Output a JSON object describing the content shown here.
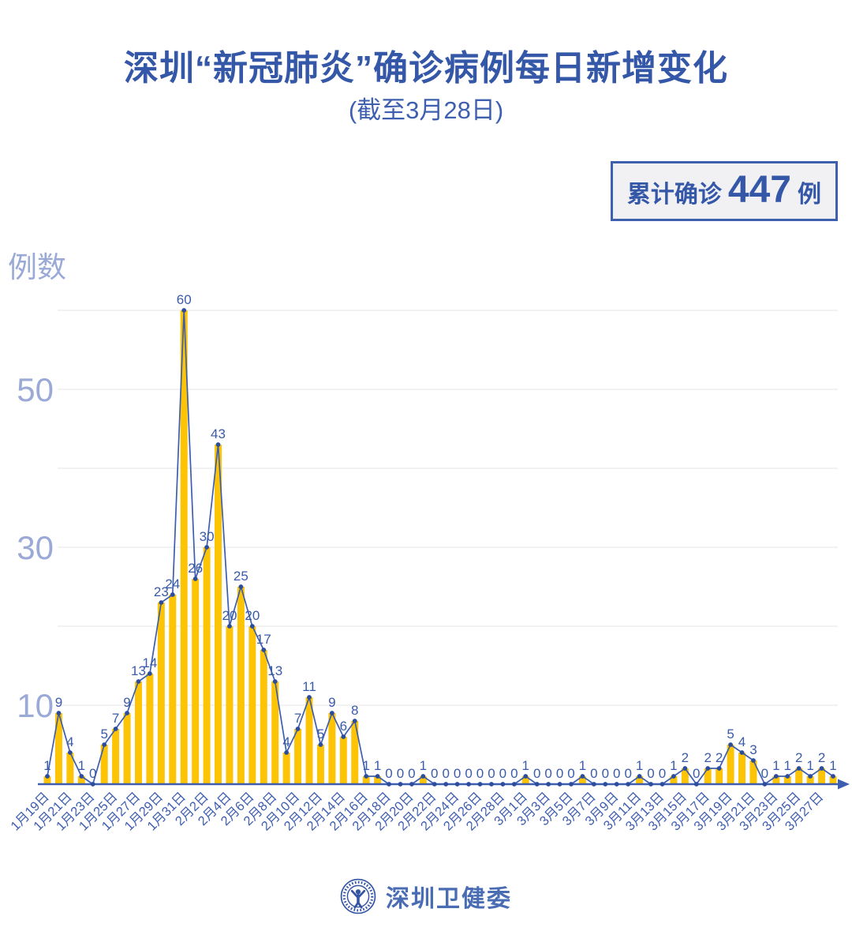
{
  "header": {
    "title": "深圳“新冠肺炎”确诊病例每日新增变化",
    "subtitle": "(截至3月28日)"
  },
  "badge": {
    "prefix": "累计确诊",
    "value": "447",
    "suffix": "例"
  },
  "footer": {
    "org": "深圳卫健委"
  },
  "colors": {
    "background": "#FFFFFF",
    "title": "#3457A7",
    "subtitle": "#3E5FAF",
    "badge_text": "#3457A7",
    "badge_bg": "#F1F1F4",
    "badge_border": "#3D5FAC",
    "bar": "#FDC405",
    "line": "#3D5EAF",
    "marker": "#2C4C9E",
    "value_label": "#3A5BA9",
    "x_tick": "#3E5EB0",
    "y_tick": "#9AA9D6",
    "grid": "#E9E9EB",
    "footer": "#4A6CB3"
  },
  "chart_data": {
    "type": "bar",
    "overlay": "line",
    "title": "深圳“新冠肺炎”确诊病例每日新增变化",
    "subtitle": "(截至3月28日)",
    "ylabel": "例数",
    "xlabel": "",
    "legend": "none",
    "grid": "horizontal",
    "ylim": [
      0,
      62
    ],
    "y_ticks_labeled": [
      10,
      30,
      50
    ],
    "y_gridlines": [
      10,
      20,
      30,
      40,
      50,
      60
    ],
    "x_tick_step": 2,
    "x": [
      "1月19日",
      "1月20日",
      "1月21日",
      "1月22日",
      "1月23日",
      "1月24日",
      "1月25日",
      "1月26日",
      "1月27日",
      "1月28日",
      "1月29日",
      "1月30日",
      "1月31日",
      "2月1日",
      "2月2日",
      "2月3日",
      "2月4日",
      "2月5日",
      "2月6日",
      "2月7日",
      "2月8日",
      "2月9日",
      "2月10日",
      "2月11日",
      "2月12日",
      "2月13日",
      "2月14日",
      "2月15日",
      "2月16日",
      "2月17日",
      "2月18日",
      "2月19日",
      "2月20日",
      "2月21日",
      "2月22日",
      "2月23日",
      "2月24日",
      "2月25日",
      "2月26日",
      "2月27日",
      "2月28日",
      "2月29日",
      "3月1日",
      "3月2日",
      "3月3日",
      "3月4日",
      "3月5日",
      "3月6日",
      "3月7日",
      "3月8日",
      "3月9日",
      "3月10日",
      "3月11日",
      "3月12日",
      "3月13日",
      "3月14日",
      "3月15日",
      "3月16日",
      "3月17日",
      "3月18日",
      "3月19日",
      "3月20日",
      "3月21日",
      "3月22日",
      "3月23日",
      "3月24日",
      "3月25日",
      "3月26日",
      "3月27日",
      "3月28日"
    ],
    "values": [
      1,
      9,
      4,
      1,
      0,
      5,
      7,
      9,
      13,
      14,
      23,
      24,
      60,
      26,
      30,
      43,
      20,
      25,
      20,
      17,
      13,
      4,
      7,
      11,
      5,
      9,
      6,
      8,
      1,
      1,
      0,
      0,
      0,
      1,
      0,
      0,
      0,
      0,
      0,
      0,
      0,
      0,
      1,
      0,
      0,
      0,
      0,
      1,
      0,
      0,
      0,
      0,
      1,
      0,
      0,
      1,
      2,
      0,
      2,
      2,
      5,
      4,
      3,
      0,
      1,
      1,
      2,
      1,
      2,
      1
    ]
  }
}
